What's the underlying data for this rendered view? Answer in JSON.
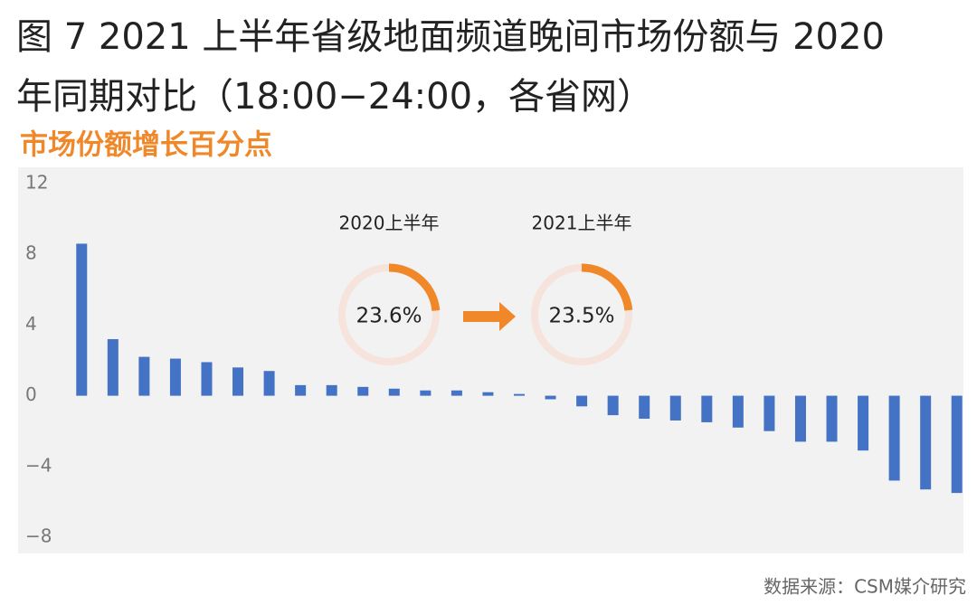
{
  "chart_data": {
    "type": "bar",
    "title_lines": [
      "图 7 2021 上半年省级地面频道晚间市场份额与 2020",
      "年同期对比（18:00−24:00，各省网）"
    ],
    "subtitle": "市场份额增长百分点",
    "values": [
      8.6,
      3.2,
      2.2,
      2.1,
      1.9,
      1.6,
      1.4,
      0.6,
      0.6,
      0.5,
      0.4,
      0.3,
      0.3,
      0.2,
      0.1,
      -0.2,
      -0.6,
      -1.1,
      -1.3,
      -1.4,
      -1.5,
      -1.8,
      -2.0,
      -2.6,
      -2.6,
      -3.1,
      -4.8,
      -5.3,
      -5.5
    ],
    "color": "#4472c4",
    "ylim": [
      -8,
      12
    ],
    "yticks": [
      12,
      8,
      4,
      0,
      {
        "value": -4,
        "label": "−4"
      },
      {
        "value": -8,
        "label": "−8"
      }
    ],
    "donuts": [
      {
        "label": "2020上半年",
        "value": 23.6,
        "value_label": "23.6%"
      },
      {
        "label": "2021上半年",
        "value": 23.5,
        "value_label": "23.5%"
      }
    ],
    "donut_color": "#f0882a",
    "source": "数据来源：CSM媒介研究"
  }
}
